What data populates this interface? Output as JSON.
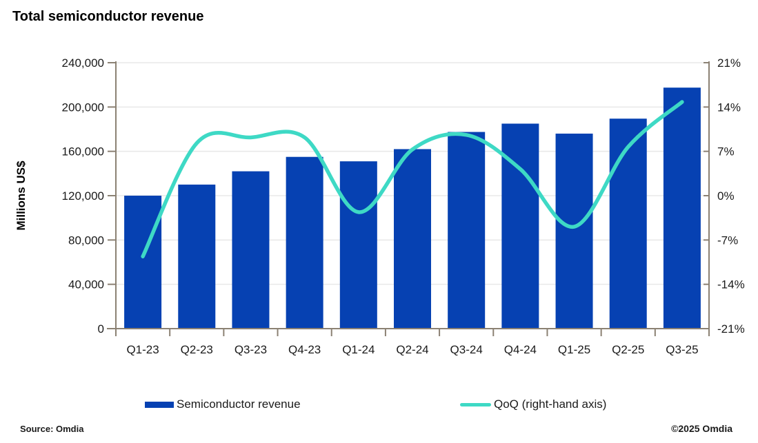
{
  "title": "Total semiconductor revenue",
  "footer": {
    "source": "Source: Omdia",
    "copyright": "©2025 Omdia"
  },
  "legend": {
    "revenue": "Semiconductor revenue",
    "qoq": "QoQ (right-hand axis)"
  },
  "colors": {
    "bar": "#0641b2",
    "line": "#3ed9c5",
    "axis": "#8b8173",
    "grid": "#e8e8e8",
    "label": "#1a1a1a"
  },
  "chart_data": {
    "type": "bar",
    "subtype": "combo bar+line with dual y-axes",
    "title": "Total semiconductor revenue",
    "xlabel": "",
    "ylabel": "Millions US$",
    "categories": [
      "Q1-23",
      "Q2-23",
      "Q3-23",
      "Q4-23",
      "Q1-24",
      "Q2-24",
      "Q3-24",
      "Q4-24",
      "Q1-25",
      "Q2-25",
      "Q3-25"
    ],
    "series": [
      {
        "name": "Semiconductor revenue",
        "type": "bar",
        "axis": "left",
        "values": [
          120000,
          130000,
          142000,
          155000,
          151000,
          162000,
          177500,
          185000,
          176000,
          189500,
          217500
        ]
      },
      {
        "name": "QoQ (right-hand axis)",
        "type": "line",
        "axis": "right",
        "values_pct": [
          -9.6,
          8.3,
          9.2,
          9.2,
          -2.6,
          7.3,
          9.6,
          4.2,
          -4.9,
          7.7,
          14.8
        ]
      }
    ],
    "y_left": {
      "min": 0,
      "max": 240000,
      "step": 40000,
      "tick_labels": [
        "0",
        "40,000",
        "80,000",
        "120,000",
        "160,000",
        "200,000",
        "240,000"
      ]
    },
    "y_right": {
      "min": -21,
      "max": 21,
      "step": 7,
      "tick_labels": [
        "-21%",
        "-14%",
        "-7%",
        "0%",
        "7%",
        "14%",
        "21%"
      ]
    },
    "grid": true,
    "legend_position": "bottom"
  }
}
